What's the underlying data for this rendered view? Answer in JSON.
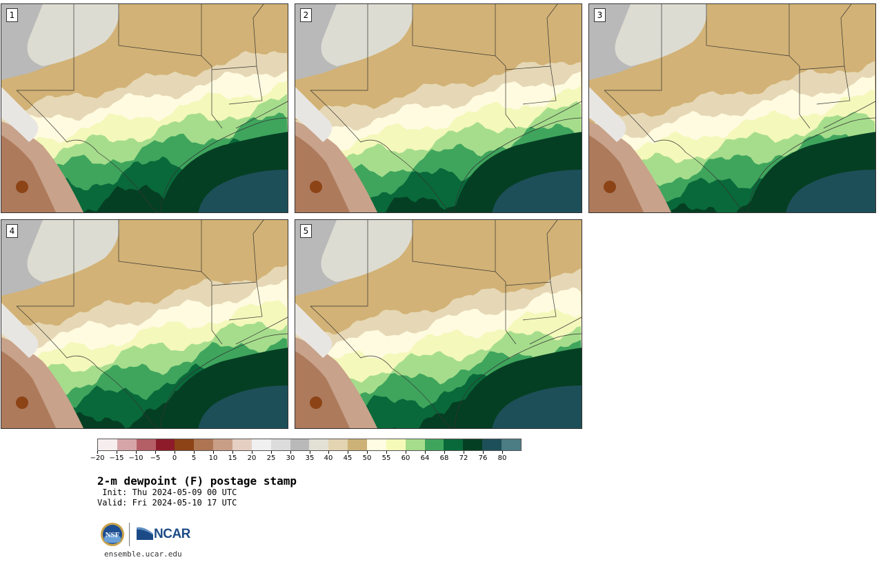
{
  "panels": [
    {
      "label": "1",
      "variant": 0
    },
    {
      "label": "2",
      "variant": 1
    },
    {
      "label": "3",
      "variant": 2
    },
    {
      "label": "4",
      "variant": 3
    },
    {
      "label": "5",
      "variant": 4
    }
  ],
  "colorbar": {
    "colors": [
      "#f6eeee",
      "#d6a5a8",
      "#b45f66",
      "#8e1b2a",
      "#8c4316",
      "#ae7552",
      "#c89e86",
      "#e5cfc3",
      "#f0f0f0",
      "#dcdcdc",
      "#b9b9b9",
      "#e3e1d6",
      "#e3d5b1",
      "#cdb277",
      "#fffce2",
      "#f6fab8",
      "#a6dd8c",
      "#3fa55d",
      "#09693a",
      "#053f23",
      "#1d4f59",
      "#4d7d84"
    ],
    "ticks": [
      "−20",
      "−15",
      "−10",
      "−5",
      "0",
      "5",
      "10",
      "15",
      "20",
      "25",
      "30",
      "35",
      "40",
      "45",
      "50",
      "55",
      "60",
      "64",
      "68",
      "72",
      "76",
      "80"
    ]
  },
  "title": "2-m dewpoint (F) postage stamp",
  "init_text": " Init: Thu 2024-05-09 00 UTC",
  "valid_text": "Valid: Fri 2024-05-10 17 UTC",
  "logos": {
    "nsf": "NSF",
    "ncar": "NCAR"
  },
  "website": "ensemble.ucar.edu"
}
